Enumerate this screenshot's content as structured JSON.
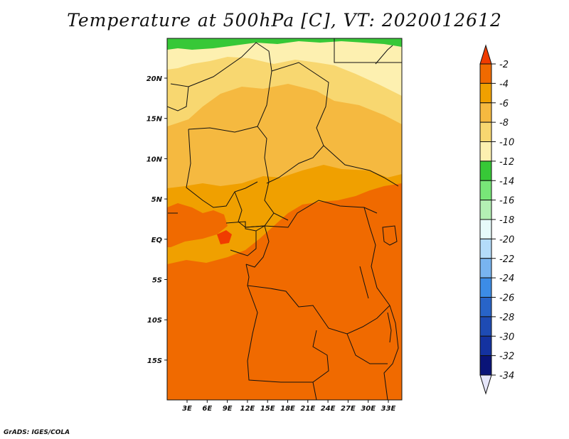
{
  "title": "Temperature at 500hPa [C], VT: 2020012612",
  "credit": "GrADS: IGES/COLA",
  "latitude_labels": [
    "20N",
    "15N",
    "10N",
    "5N",
    "EQ",
    "5S",
    "10S",
    "15S"
  ],
  "longitude_labels": [
    "3E",
    "6E",
    "9E",
    "12E",
    "15E",
    "18E",
    "21E",
    "24E",
    "27E",
    "30E",
    "33E"
  ],
  "colorbar": {
    "labels": [
      "-2",
      "-4",
      "-6",
      "-8",
      "-10",
      "-12",
      "-14",
      "-16",
      "-18",
      "-20",
      "-22",
      "-24",
      "-26",
      "-28",
      "-30",
      "-32",
      "-34"
    ],
    "colors": [
      "#f03c00",
      "#f06a00",
      "#f0a000",
      "#f5b940",
      "#f8d770",
      "#fdf0b0",
      "#37c837",
      "#78e678",
      "#b4f0b4",
      "#e6fafa",
      "#b4dcfa",
      "#78b4f0",
      "#3c8ce6",
      "#2864c8",
      "#1e4bb4",
      "#1432a0",
      "#0a1478",
      "#e6e6fa"
    ]
  },
  "map_fields": {
    "fill_colors": {
      "minus_4_to_minus_2": "#f06a00",
      "minus_6_to_minus_4": "#f0a000",
      "minus_8_to_minus_6": "#f5b940",
      "minus_10_to_minus_8": "#f8d770",
      "minus_12_to_minus_10": "#fdf0b0",
      "minus_14_to_minus_12": "#37c837",
      "above_minus_2": "#f03c00"
    }
  }
}
